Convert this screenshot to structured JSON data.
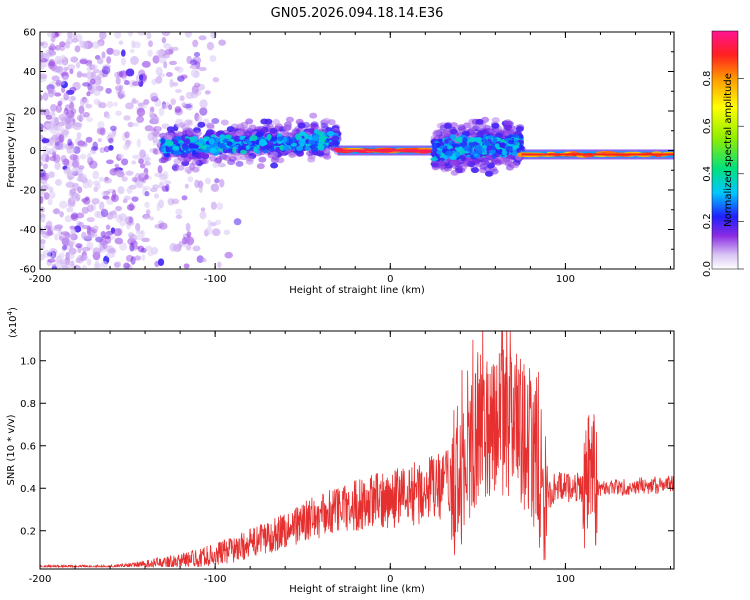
{
  "title": "GN05.2026.094.18.14.E36",
  "colors": {
    "axis": "#000000",
    "snr_line": "#e63030",
    "background": "#ffffff"
  },
  "chart_data": [
    {
      "type": "heatmap",
      "title": "GN05.2026.094.18.14.E36",
      "xlabel": "Height of straight line (km)",
      "ylabel": "Frequency (Hz)",
      "xlim": [
        -200,
        162
      ],
      "ylim": [
        -60,
        60
      ],
      "xticks": [
        -200,
        -100,
        0,
        100
      ],
      "yticks": [
        -60,
        -40,
        -20,
        0,
        20,
        40,
        60
      ],
      "colorbar": {
        "label": "Normalized spectral amplitude",
        "range": [
          0,
          1
        ],
        "ticks": [
          "0.0",
          "0.2",
          "0.4",
          "0.6",
          "0.8"
        ],
        "tick_values": [
          0.0,
          0.2,
          0.4,
          0.6,
          0.8
        ]
      },
      "features": [
        {
          "name": "diffuse noise",
          "x_range": [
            -200,
            -100
          ],
          "freq_range": [
            -60,
            60
          ],
          "amplitude": 0.1
        },
        {
          "name": "turbulent band",
          "x_range": [
            -130,
            -30
          ],
          "freq_center": 2,
          "freq_halfwidth": 10,
          "amplitude": 0.3
        },
        {
          "name": "steady tone",
          "x_range": [
            -30,
            25
          ],
          "freq_center": 0,
          "amplitude": 0.95
        },
        {
          "name": "turbulent band",
          "x_range": [
            25,
            75
          ],
          "freq_center": 0,
          "freq_halfwidth": 12,
          "amplitude": 0.3
        },
        {
          "name": "steady tone",
          "x_range": [
            75,
            162
          ],
          "freq_center": -2,
          "amplitude": 0.9
        }
      ]
    },
    {
      "type": "line",
      "xlabel": "Height of straight line (km)",
      "ylabel": "SNR (10 * v/v)",
      "y_multiplier": "(x10",
      "y_multiplier_exp": "4",
      "xlim": [
        -200,
        162
      ],
      "ylim": [
        0.02,
        1.14
      ],
      "xticks": [
        -200,
        -100,
        0,
        100
      ],
      "yticks": [
        0.2,
        0.4,
        0.6,
        0.8,
        1.0
      ],
      "ytick_labels": [
        "0.2",
        "0.4",
        "0.6",
        "0.8",
        "1.0"
      ],
      "series": [
        {
          "name": "SNR",
          "x": [
            -200,
            -160,
            -130,
            -110,
            -90,
            -70,
            -50,
            -30,
            -15,
            0,
            10,
            20,
            30,
            35,
            40,
            45,
            50,
            60,
            70,
            80,
            85,
            90,
            95,
            100,
            105,
            110,
            113,
            115,
            117,
            120,
            140,
            162
          ],
          "y": [
            0.03,
            0.03,
            0.05,
            0.07,
            0.11,
            0.17,
            0.24,
            0.3,
            0.33,
            0.35,
            0.37,
            0.39,
            0.41,
            0.42,
            0.45,
            0.55,
            0.7,
            0.72,
            0.7,
            0.62,
            0.45,
            0.35,
            0.42,
            0.4,
            0.41,
            0.4,
            0.45,
            0.55,
            0.42,
            0.4,
            0.41,
            0.42
          ]
        }
      ]
    }
  ]
}
